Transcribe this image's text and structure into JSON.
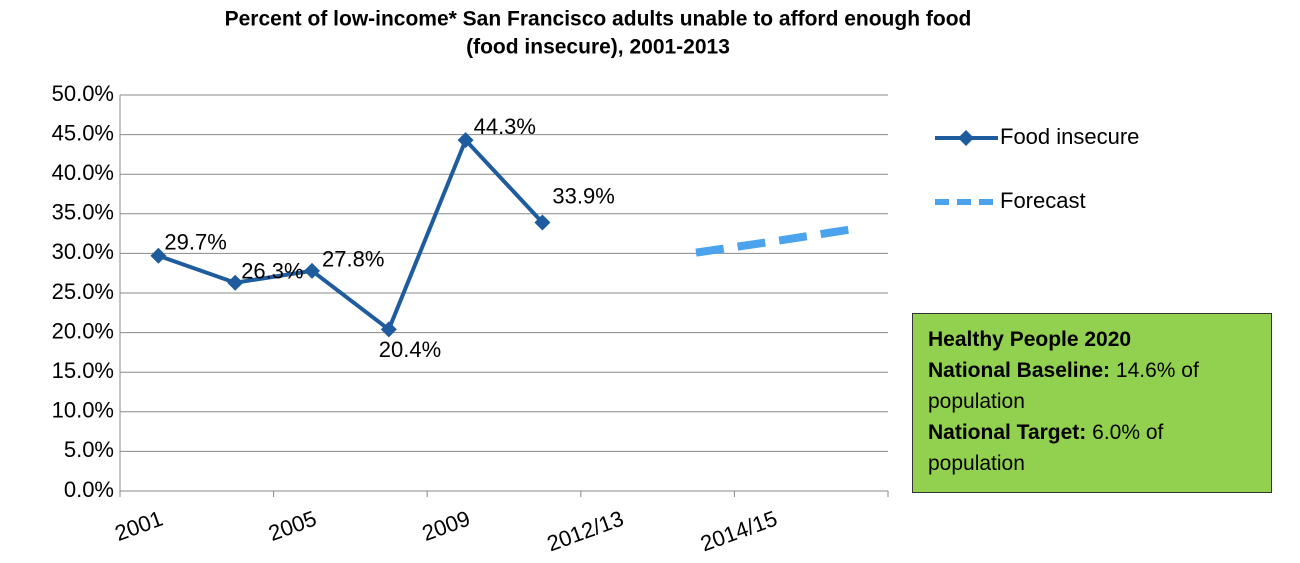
{
  "chart_data": {
    "type": "line",
    "title": [
      "Percent of low-income* San Francisco adults unable to afford enough food",
      "(food insecure), 2001-2013"
    ],
    "categories": [
      "2001",
      null,
      "2005",
      null,
      "2009",
      null,
      "2012/13",
      null,
      "2014/15",
      null
    ],
    "series": [
      {
        "name": "Food insecure",
        "color": "#1f5c9e",
        "values": [
          29.7,
          26.3,
          27.8,
          20.4,
          44.3,
          33.9,
          null,
          null,
          null,
          null
        ],
        "value_labels": [
          "29.7%",
          "26.3%",
          "27.8%",
          "20.4%",
          "44.3%",
          "33.9%",
          null,
          null,
          null,
          null
        ]
      },
      {
        "name": "Forecast",
        "color": "#4aa3ec",
        "dashed": true,
        "values": [
          null,
          null,
          null,
          null,
          null,
          null,
          null,
          30.1,
          31.5,
          33.0
        ]
      }
    ],
    "ylim": [
      0,
      50
    ],
    "yticks": [
      {
        "value": 0,
        "label": "0.0%"
      },
      {
        "value": 5,
        "label": "5.0%"
      },
      {
        "value": 10,
        "label": "10.0%"
      },
      {
        "value": 15,
        "label": "15.0%"
      },
      {
        "value": 20,
        "label": "20.0%"
      },
      {
        "value": 25,
        "label": "25.0%"
      },
      {
        "value": 30,
        "label": "30.0%"
      },
      {
        "value": 35,
        "label": "35.0%"
      },
      {
        "value": 40,
        "label": "40.0%"
      },
      {
        "value": 45,
        "label": "45.0%"
      },
      {
        "value": 50,
        "label": "50.0%"
      }
    ],
    "grid": true,
    "legend": "right",
    "annotation": {
      "heading": "Healthy People 2020",
      "lines": [
        {
          "label": "National Baseline:",
          "text": "14.6% of population"
        },
        {
          "label": "National Target:",
          "text": "6.0% of population"
        }
      ],
      "color": "#92d050"
    }
  }
}
